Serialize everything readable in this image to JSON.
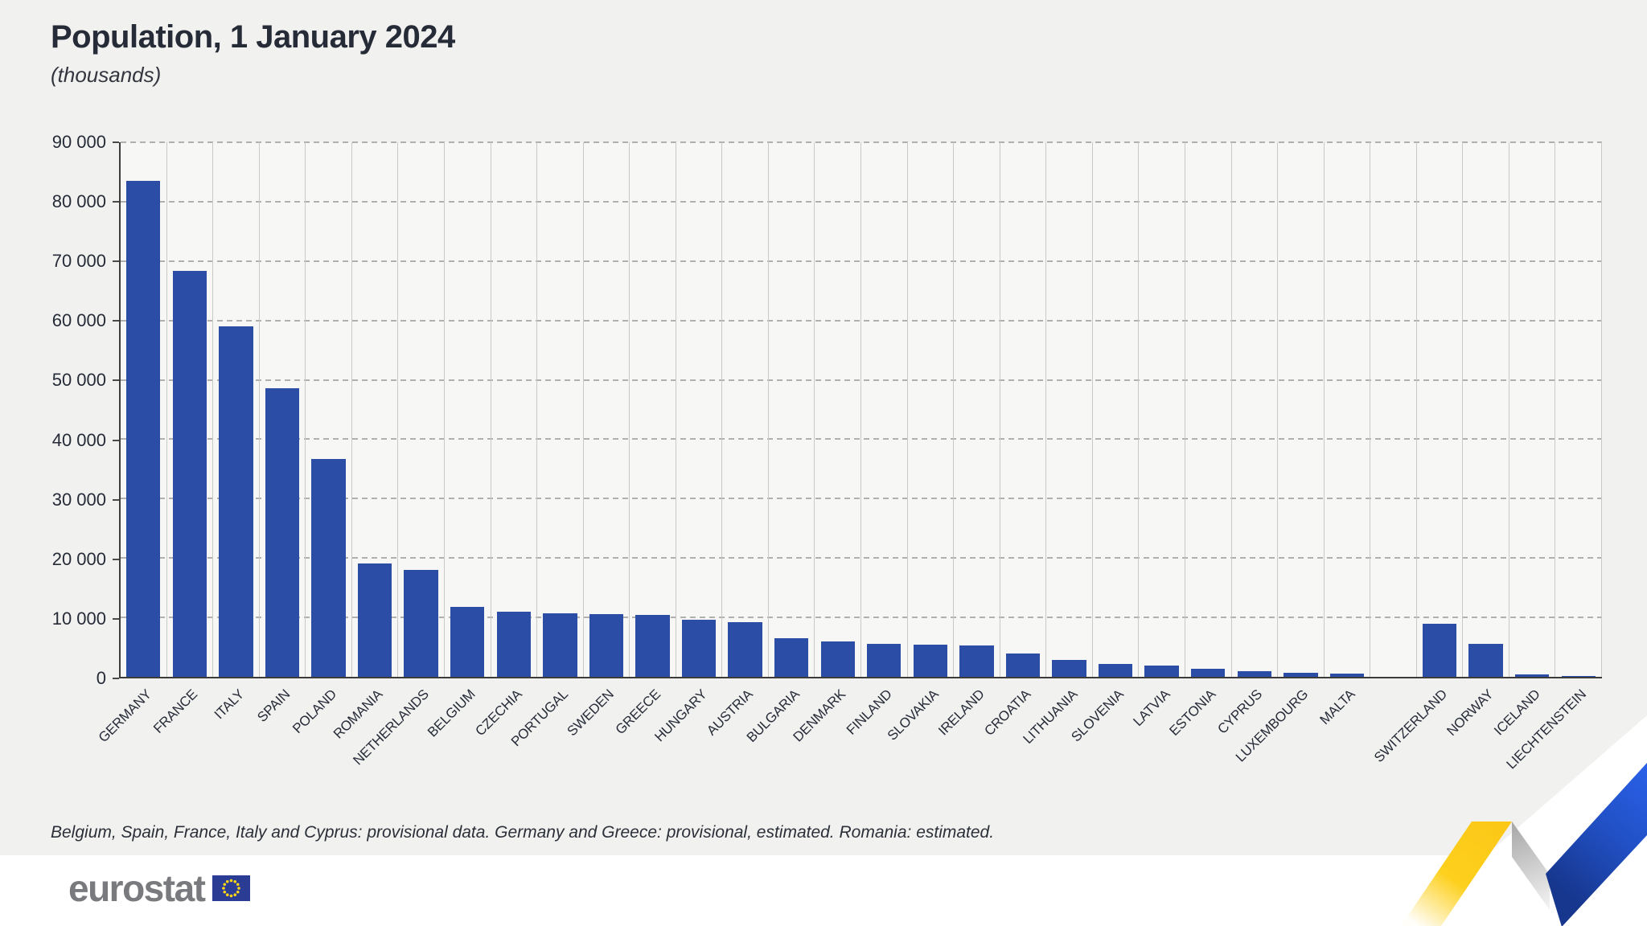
{
  "header": {
    "title": "Population, 1 January 2024",
    "subtitle": "(thousands)"
  },
  "chart_data": {
    "type": "bar",
    "title": "Population, 1 January 2024",
    "subtitle": "(thousands)",
    "unit": "thousands",
    "ylim": [
      0,
      90000
    ],
    "ytick_interval": 10000,
    "yticks": [
      0,
      10000,
      20000,
      30000,
      40000,
      50000,
      60000,
      70000,
      80000,
      90000
    ],
    "ytick_labels": [
      "0",
      "10 000",
      "20 000",
      "30 000",
      "40 000",
      "50 000",
      "60 000",
      "70 000",
      "80 000",
      "90 000"
    ],
    "grid": {
      "horizontal": "dashed",
      "vertical": "solid"
    },
    "legend": null,
    "bar_color": "#2b4da5",
    "bars": [
      {
        "label": "GERMANY",
        "value": 83456
      },
      {
        "label": "FRANCE",
        "value": 68402
      },
      {
        "label": "ITALY",
        "value": 58990
      },
      {
        "label": "SPAIN",
        "value": 48620
      },
      {
        "label": "POLAND",
        "value": 36621
      },
      {
        "label": "ROMANIA",
        "value": 19064
      },
      {
        "label": "NETHERLANDS",
        "value": 17943
      },
      {
        "label": "BELGIUM",
        "value": 11832
      },
      {
        "label": "CZECHIA",
        "value": 10901
      },
      {
        "label": "PORTUGAL",
        "value": 10640
      },
      {
        "label": "SWEDEN",
        "value": 10552
      },
      {
        "label": "GREECE",
        "value": 10397
      },
      {
        "label": "HUNGARY",
        "value": 9585
      },
      {
        "label": "AUSTRIA",
        "value": 9159
      },
      {
        "label": "BULGARIA",
        "value": 6446
      },
      {
        "label": "DENMARK",
        "value": 5961
      },
      {
        "label": "FINLAND",
        "value": 5604
      },
      {
        "label": "SLOVAKIA",
        "value": 5425
      },
      {
        "label": "IRELAND",
        "value": 5344
      },
      {
        "label": "CROATIA",
        "value": 3862
      },
      {
        "label": "LITHUANIA",
        "value": 2886
      },
      {
        "label": "SLOVENIA",
        "value": 2124
      },
      {
        "label": "LATVIA",
        "value": 1872
      },
      {
        "label": "ESTONIA",
        "value": 1375
      },
      {
        "label": "CYPRUS",
        "value": 934
      },
      {
        "label": "LUXEMBOURG",
        "value": 672
      },
      {
        "label": "MALTA",
        "value": 563
      },
      {
        "label": "",
        "value": null
      },
      {
        "label": "SWITZERLAND",
        "value": 8962
      },
      {
        "label": "NORWAY",
        "value": 5550
      },
      {
        "label": "ICELAND",
        "value": 384
      },
      {
        "label": "LIECHTENSTEIN",
        "value": 40
      }
    ]
  },
  "footnote": "Belgium, Spain, France, Italy and Cyprus: provisional data. Germany and Greece: provisional, estimated. Romania: estimated.",
  "logo": {
    "text": "eurostat"
  },
  "colors": {
    "panel": "#f1f1ef",
    "plot_bg": "#f7f7f5",
    "bar": "#2b4da5",
    "ribbon_yellow": "#fcc818",
    "ribbon_blue": "#2150c4",
    "flag_blue": "#2b3c94",
    "flag_stars": "#ffd617"
  }
}
